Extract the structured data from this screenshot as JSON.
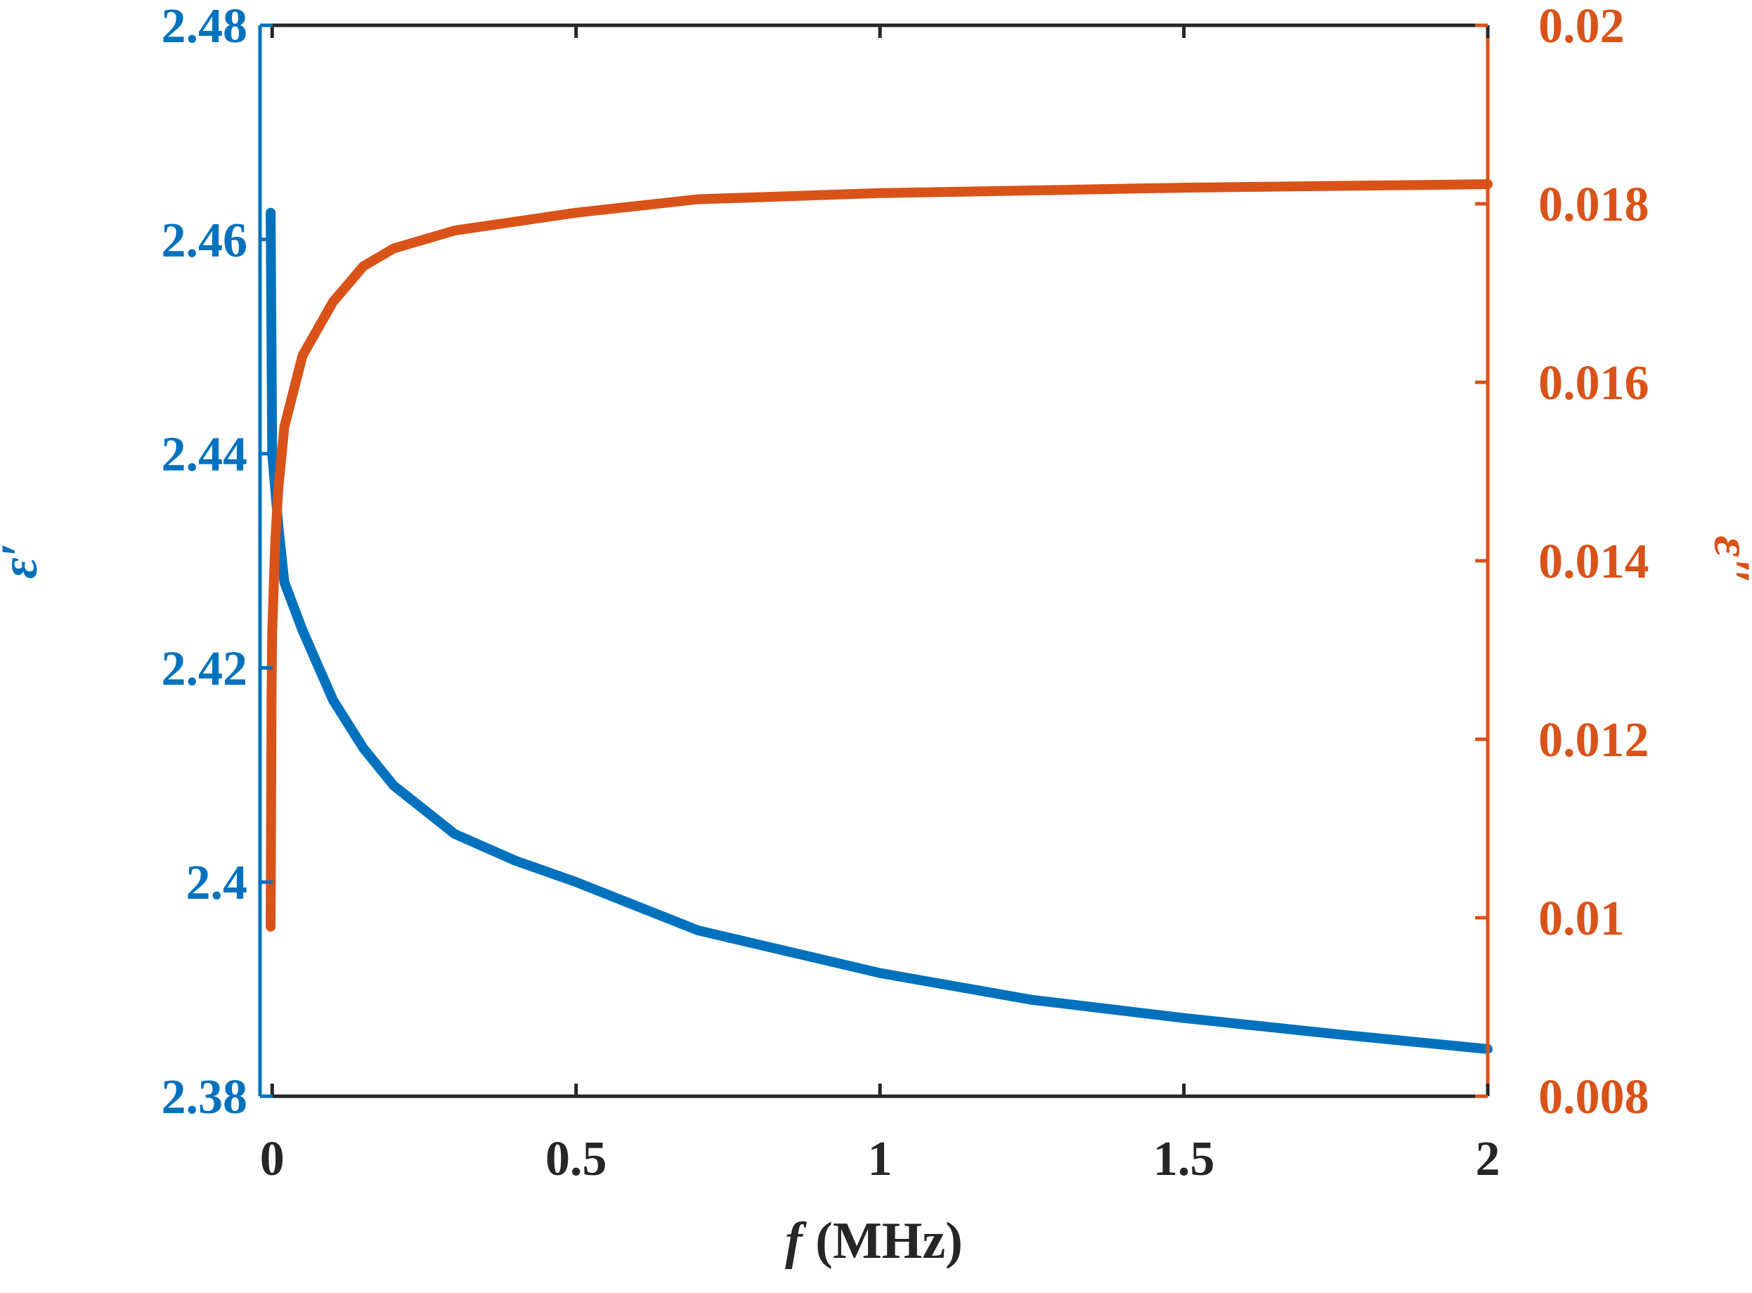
{
  "chart_data": {
    "type": "line",
    "xlabel_symbol": "f",
    "xlabel_unit": " (MHz)",
    "ylabel_left": "ε′",
    "ylabel_right": "ε″",
    "xlim": [
      -0.02,
      2.0
    ],
    "ylim_left": [
      2.38,
      2.48
    ],
    "ylim_right": [
      0.008,
      0.02
    ],
    "x_ticks": [
      0,
      0.5,
      1,
      1.5,
      2
    ],
    "x_tick_labels": [
      "0",
      "0.5",
      "1",
      "1.5",
      "2"
    ],
    "y_left_ticks": [
      2.38,
      2.4,
      2.42,
      2.44,
      2.46,
      2.48
    ],
    "y_left_tick_labels": [
      "2.38",
      "2.4",
      "2.42",
      "2.44",
      "2.46",
      "2.48"
    ],
    "y_right_ticks": [
      0.008,
      0.01,
      0.012,
      0.014,
      0.016,
      0.018,
      0.02
    ],
    "y_right_tick_labels": [
      "0.008",
      "0.01",
      "0.012",
      "0.014",
      "0.016",
      "0.018",
      "0.02"
    ],
    "colors": {
      "left": "#0072BD",
      "right": "#D95319",
      "axis": "#262626"
    },
    "grid": false,
    "series": [
      {
        "axis": "left",
        "x": [
          -0.0025,
          0.0,
          0.01,
          0.02,
          0.05,
          0.1,
          0.15,
          0.2,
          0.3,
          0.4,
          0.5,
          0.7,
          1.0,
          1.25,
          1.5,
          1.75,
          2.0
        ],
        "values": [
          2.4625,
          2.44,
          2.4334,
          2.428,
          2.4235,
          2.417,
          2.4125,
          2.409,
          2.4045,
          2.402,
          2.4,
          2.3955,
          2.3915,
          2.389,
          2.3873,
          2.3858,
          2.3844
        ]
      },
      {
        "axis": "right",
        "x": [
          -0.0025,
          -0.001,
          0.0,
          0.005,
          0.01,
          0.02,
          0.05,
          0.1,
          0.15,
          0.2,
          0.3,
          0.5,
          0.7,
          1.0,
          1.5,
          2.0
        ],
        "values": [
          0.0099,
          0.0125,
          0.0132,
          0.0142,
          0.0148,
          0.0155,
          0.0163,
          0.0169,
          0.0173,
          0.0175,
          0.0177,
          0.0179,
          0.01805,
          0.01812,
          0.01818,
          0.01822
        ]
      }
    ]
  }
}
